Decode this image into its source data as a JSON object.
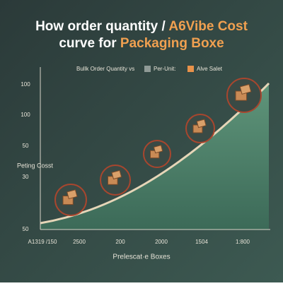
{
  "header": {
    "title_line1": {
      "plain": "How order quantity /",
      "accent": "A6Vibe Cost"
    },
    "title_line2": {
      "plain": "curve for",
      "accent": "Packaging Boxe"
    }
  },
  "legend": {
    "lead": "Bullk Order Quantity vs",
    "items": [
      "Per-Unit:",
      "Alve Salet"
    ]
  },
  "axes": {
    "y_title": "Peting Cosst",
    "y_labels": [
      "100",
      "100",
      "50",
      "30",
      "50"
    ],
    "x_labels": [
      "A1319 /150",
      "2500",
      "200",
      "2000",
      "1504",
      "1:800"
    ],
    "x_title": "Prelescat·e Boxes"
  }
}
